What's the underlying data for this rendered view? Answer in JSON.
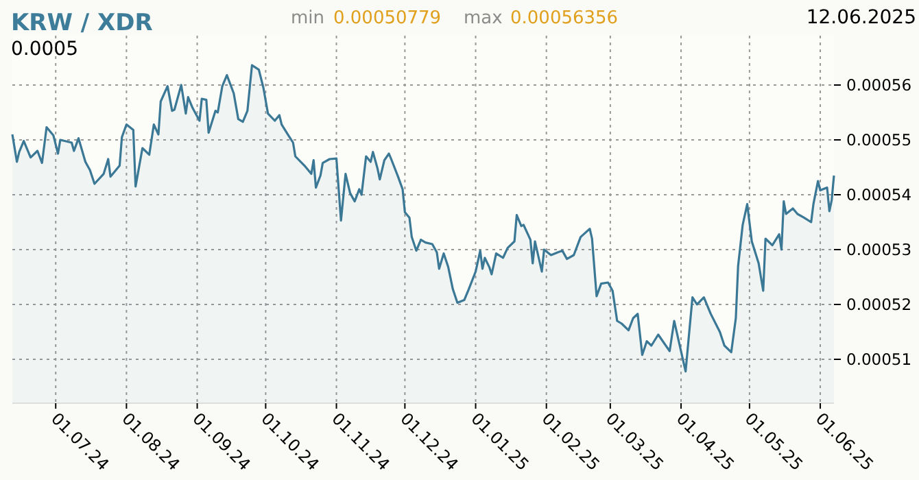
{
  "chart_data": {
    "type": "area",
    "title": "KRW / XDR",
    "annotations": [
      "0.0005",
      "min",
      "0.00050779",
      "max",
      "0.00056356",
      "12.06.2025"
    ],
    "xlim": [
      "2024-06-12",
      "2025-06-07"
    ],
    "ylim": [
      0.000502,
      0.000569
    ],
    "xticks": [
      {
        "value": "2024-07-01",
        "label": "01.07.24"
      },
      {
        "value": "2024-08-01",
        "label": "01.08.24"
      },
      {
        "value": "2024-09-01",
        "label": "01.09.24"
      },
      {
        "value": "2024-10-01",
        "label": "01.10.24"
      },
      {
        "value": "2024-11-01",
        "label": "01.11.24"
      },
      {
        "value": "2024-12-01",
        "label": "01.12.24"
      },
      {
        "value": "2025-01-01",
        "label": "01.01.25"
      },
      {
        "value": "2025-02-01",
        "label": "01.02.25"
      },
      {
        "value": "2025-03-01",
        "label": "01.03.25"
      },
      {
        "value": "2025-04-01",
        "label": "01.04.25"
      },
      {
        "value": "2025-05-01",
        "label": "01.05.25"
      },
      {
        "value": "2025-06-01",
        "label": "01.06.25"
      }
    ],
    "yticks": [
      0.00051,
      0.00052,
      0.00053,
      0.00054,
      0.00055,
      0.00056
    ],
    "grid": true,
    "series": [
      {
        "color": "#3a7896",
        "x": [
          "2024-06-12",
          "2024-06-14",
          "2024-06-15",
          "2024-06-17",
          "2024-06-20",
          "2024-06-23",
          "2024-06-25",
          "2024-06-27",
          "2024-06-30",
          "2024-07-02",
          "2024-07-03",
          "2024-07-08",
          "2024-07-09",
          "2024-07-11",
          "2024-07-14",
          "2024-07-16",
          "2024-07-18",
          "2024-07-22",
          "2024-07-24",
          "2024-07-25",
          "2024-07-29",
          "2024-07-30",
          "2024-08-01",
          "2024-08-04",
          "2024-08-05",
          "2024-08-08",
          "2024-08-11",
          "2024-08-13",
          "2024-08-15",
          "2024-08-16",
          "2024-08-19",
          "2024-08-21",
          "2024-08-22",
          "2024-08-25",
          "2024-08-27",
          "2024-08-28",
          "2024-08-30",
          "2024-09-02",
          "2024-09-03",
          "2024-09-05",
          "2024-09-06",
          "2024-09-09",
          "2024-09-10",
          "2024-09-12",
          "2024-09-14",
          "2024-09-17",
          "2024-09-19",
          "2024-09-21",
          "2024-09-23",
          "2024-09-25",
          "2024-09-28",
          "2024-09-30",
          "2024-10-02",
          "2024-10-05",
          "2024-10-07",
          "2024-10-08",
          "2024-10-11",
          "2024-10-13",
          "2024-10-14",
          "2024-10-18",
          "2024-10-21",
          "2024-10-22",
          "2024-10-23",
          "2024-10-25",
          "2024-10-26",
          "2024-10-29",
          "2024-11-01",
          "2024-11-03",
          "2024-11-05",
          "2024-11-07",
          "2024-11-09",
          "2024-11-11",
          "2024-11-12",
          "2024-11-14",
          "2024-11-16",
          "2024-11-17",
          "2024-11-19",
          "2024-11-20",
          "2024-11-22",
          "2024-11-24",
          "2024-11-25",
          "2024-11-28",
          "2024-11-30",
          "2024-12-01",
          "2024-12-03",
          "2024-12-04",
          "2024-12-06",
          "2024-12-08",
          "2024-12-10",
          "2024-12-13",
          "2024-12-15",
          "2024-12-16",
          "2024-12-18",
          "2024-12-20",
          "2024-12-22",
          "2024-12-24",
          "2024-12-27",
          "2024-12-29",
          "2025-01-01",
          "2025-01-03",
          "2025-01-04",
          "2025-01-05",
          "2025-01-07",
          "2025-01-08",
          "2025-01-10",
          "2025-01-13",
          "2025-01-15",
          "2025-01-18",
          "2025-01-19",
          "2025-01-21",
          "2025-01-22",
          "2025-01-25",
          "2025-01-26",
          "2025-01-27",
          "2025-01-30",
          "2025-01-31",
          "2025-02-03",
          "2025-02-06",
          "2025-02-08",
          "2025-02-10",
          "2025-02-13",
          "2025-02-16",
          "2025-02-20",
          "2025-02-21",
          "2025-02-23",
          "2025-02-25",
          "2025-02-28",
          "2025-03-02",
          "2025-03-04",
          "2025-03-06",
          "2025-03-09",
          "2025-03-11",
          "2025-03-13",
          "2025-03-15",
          "2025-03-17",
          "2025-03-19",
          "2025-03-22",
          "2025-03-27",
          "2025-03-29",
          "2025-03-31",
          "2025-04-03",
          "2025-04-06",
          "2025-04-08",
          "2025-04-11",
          "2025-04-14",
          "2025-04-18",
          "2025-04-20",
          "2025-04-23",
          "2025-04-25",
          "2025-04-26",
          "2025-04-28",
          "2025-04-30",
          "2025-05-02",
          "2025-05-05",
          "2025-05-07",
          "2025-05-08",
          "2025-05-11",
          "2025-05-14",
          "2025-05-15",
          "2025-05-16",
          "2025-05-17",
          "2025-05-20",
          "2025-05-22",
          "2025-05-25",
          "2025-05-28",
          "2025-05-29",
          "2025-05-31",
          "2025-06-01",
          "2025-06-04",
          "2025-06-05",
          "2025-06-06",
          "2025-06-07"
        ],
        "values": [
          0.000551,
          0.000546,
          0.0005478,
          0.0005498,
          0.0005468,
          0.000548,
          0.0005458,
          0.0005523,
          0.0005508,
          0.0005475,
          0.00055,
          0.0005495,
          0.000548,
          0.0005503,
          0.000546,
          0.0005445,
          0.000542,
          0.0005438,
          0.0005465,
          0.0005433,
          0.0005453,
          0.0005505,
          0.0005528,
          0.0005518,
          0.0005415,
          0.0005485,
          0.0005473,
          0.0005528,
          0.000551,
          0.000557,
          0.0005598,
          0.0005553,
          0.0005555,
          0.00056,
          0.0005548,
          0.0005578,
          0.0005558,
          0.0005535,
          0.0005575,
          0.0005573,
          0.0005513,
          0.0005553,
          0.000555,
          0.0005598,
          0.0005618,
          0.0005585,
          0.0005538,
          0.0005533,
          0.0005553,
          0.0005636,
          0.0005628,
          0.0005595,
          0.0005548,
          0.0005535,
          0.0005545,
          0.0005528,
          0.0005508,
          0.0005495,
          0.000547,
          0.0005453,
          0.0005438,
          0.0005463,
          0.0005413,
          0.0005435,
          0.0005458,
          0.0005465,
          0.0005466,
          0.0005353,
          0.0005438,
          0.0005403,
          0.0005388,
          0.000541,
          0.00054,
          0.000547,
          0.000546,
          0.0005478,
          0.0005448,
          0.0005428,
          0.0005463,
          0.0005475,
          0.0005465,
          0.0005433,
          0.000541,
          0.0005368,
          0.0005358,
          0.0005323,
          0.0005298,
          0.0005318,
          0.0005313,
          0.000531,
          0.0005295,
          0.0005265,
          0.0005293,
          0.0005268,
          0.0005228,
          0.0005203,
          0.0005208,
          0.0005228,
          0.000526,
          0.0005298,
          0.0005265,
          0.0005285,
          0.0005268,
          0.0005255,
          0.0005293,
          0.0005285,
          0.0005303,
          0.0005315,
          0.0005363,
          0.0005343,
          0.0005345,
          0.0005318,
          0.0005275,
          0.0005315,
          0.000526,
          0.00053,
          0.000529,
          0.0005295,
          0.0005298,
          0.0005283,
          0.000529,
          0.0005323,
          0.0005338,
          0.000532,
          0.0005215,
          0.0005238,
          0.000524,
          0.0005225,
          0.000517,
          0.0005165,
          0.0005153,
          0.0005175,
          0.0005183,
          0.0005108,
          0.0005133,
          0.0005125,
          0.0005145,
          0.0005115,
          0.000517,
          0.0005133,
          0.0005078,
          0.0005213,
          0.00052,
          0.0005213,
          0.0005183,
          0.000515,
          0.0005125,
          0.0005113,
          0.0005175,
          0.000527,
          0.0005345,
          0.0005383,
          0.0005315,
          0.0005275,
          0.0005225,
          0.000532,
          0.0005308,
          0.0005328,
          0.00053,
          0.0005388,
          0.0005365,
          0.0005375,
          0.0005365,
          0.0005358,
          0.000535,
          0.0005383,
          0.0005425,
          0.0005408,
          0.0005413,
          0.000537,
          0.000539,
          0.0005435
        ]
      }
    ]
  }
}
